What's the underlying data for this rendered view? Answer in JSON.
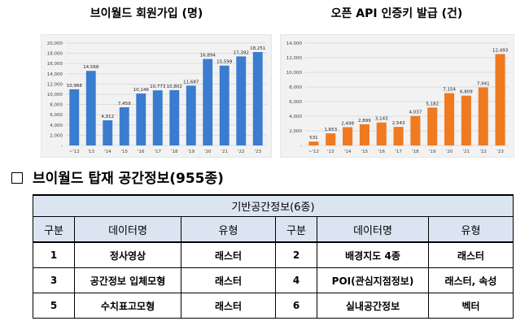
{
  "chart_data": [
    {
      "type": "bar",
      "title": "브이월드 회원가입 (명)",
      "categories": [
        "~'12",
        "'13",
        "'14",
        "'15",
        "'16",
        "'17",
        "'18",
        "'19",
        "'20",
        "'21",
        "'22",
        "'23"
      ],
      "values": [
        10968,
        14568,
        4912,
        7459,
        10146,
        10773,
        10802,
        11687,
        16894,
        15599,
        17392,
        18251
      ],
      "value_labels": [
        "10,968",
        "14,568",
        "4,912",
        "7,459",
        "10,146",
        "10,773",
        "10,802",
        "11,687",
        "16,894",
        "15,599",
        "17,392",
        "18,251"
      ],
      "ylim": [
        0,
        20000
      ],
      "yticks": [
        0,
        2000,
        4000,
        6000,
        8000,
        10000,
        12000,
        14000,
        16000,
        18000,
        20000
      ],
      "ytick_labels": [
        "-",
        "2,000",
        "4,000",
        "6,000",
        "8,000",
        "10,000",
        "12,000",
        "14,000",
        "16,000",
        "18,000",
        "20,000"
      ],
      "color": "#3a7ccf",
      "xlabel": "",
      "ylabel": "",
      "grid": true
    },
    {
      "type": "bar",
      "title": "오픈 API 인증키 발급 (건)",
      "categories": [
        "~'12",
        "'13",
        "'14",
        "'15",
        "'16",
        "'17",
        "'18",
        "'19",
        "'20",
        "'21",
        "'22",
        "'23"
      ],
      "values": [
        531,
        1653,
        2498,
        2899,
        3143,
        2543,
        4037,
        5182,
        7154,
        6809,
        7941,
        12493
      ],
      "value_labels": [
        "531",
        "1,653",
        "2,498",
        "2,899",
        "3,143",
        "2,543",
        "4,037",
        "5,182",
        "7,154",
        "6,809",
        "7,941",
        "12,493"
      ],
      "ylim": [
        0,
        14000
      ],
      "yticks": [
        0,
        2000,
        4000,
        6000,
        8000,
        10000,
        12000,
        14000
      ],
      "ytick_labels": [
        "-",
        "2,000",
        "4,000",
        "6,000",
        "8,000",
        "10,000",
        "12,000",
        "14,000"
      ],
      "color": "#f07a20",
      "xlabel": "",
      "ylabel": "",
      "grid": true
    }
  ],
  "section": {
    "box_icon": "square-outline-icon",
    "title": "브이월드 탑재 공간정보(955종)"
  },
  "table": {
    "title": "기반공간정보(6종)",
    "headers": [
      "구분",
      "데이터명",
      "유형",
      "구분",
      "데이터명",
      "유형"
    ],
    "rows": [
      [
        "1",
        "정사영상",
        "래스터",
        "2",
        "배경지도 4종",
        "래스터"
      ],
      [
        "3",
        "공간정보 입체모형",
        "래스터",
        "4",
        "POI(관심지점정보)",
        "래스터, 속성"
      ],
      [
        "5",
        "수치표고모형",
        "래스터",
        "6",
        "실내공간정보",
        "벡터"
      ]
    ]
  }
}
